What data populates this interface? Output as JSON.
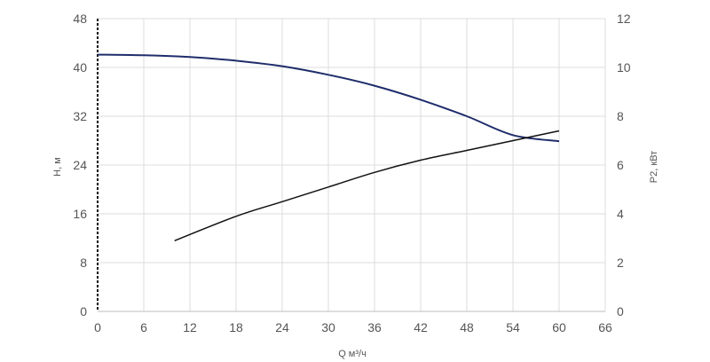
{
  "chart_data": {
    "type": "line",
    "xlabel": "Q м³/ч",
    "ylabel_left": "H, м",
    "ylabel_right": "P2, кВт",
    "xlim": [
      0,
      66
    ],
    "ylim_left": [
      0,
      48
    ],
    "ylim_right": [
      0,
      12
    ],
    "x_ticks": [
      0,
      6,
      12,
      18,
      24,
      30,
      36,
      42,
      48,
      54,
      60,
      66
    ],
    "y_ticks_left": [
      0,
      8,
      16,
      24,
      32,
      40,
      48
    ],
    "y_ticks_right": [
      0,
      2,
      4,
      6,
      8,
      10,
      12
    ],
    "grid": true,
    "colors": {
      "head": "#1f2d6b",
      "power": "#111111",
      "grid": "#dcdcdc",
      "axis": "#111111"
    },
    "series": [
      {
        "axis": "left",
        "x": [
          0,
          6,
          12,
          18,
          24,
          30,
          36,
          42,
          48,
          54,
          60
        ],
        "y": [
          42.1,
          42.0,
          41.7,
          41.1,
          40.2,
          38.8,
          37.0,
          34.7,
          32.0,
          28.9,
          27.9
        ]
      },
      {
        "axis": "right",
        "x": [
          10,
          18,
          24,
          30,
          36,
          42,
          48,
          54,
          60
        ],
        "y": [
          2.9,
          3.9,
          4.5,
          5.1,
          5.7,
          6.2,
          6.6,
          7.0,
          7.4
        ]
      }
    ]
  }
}
